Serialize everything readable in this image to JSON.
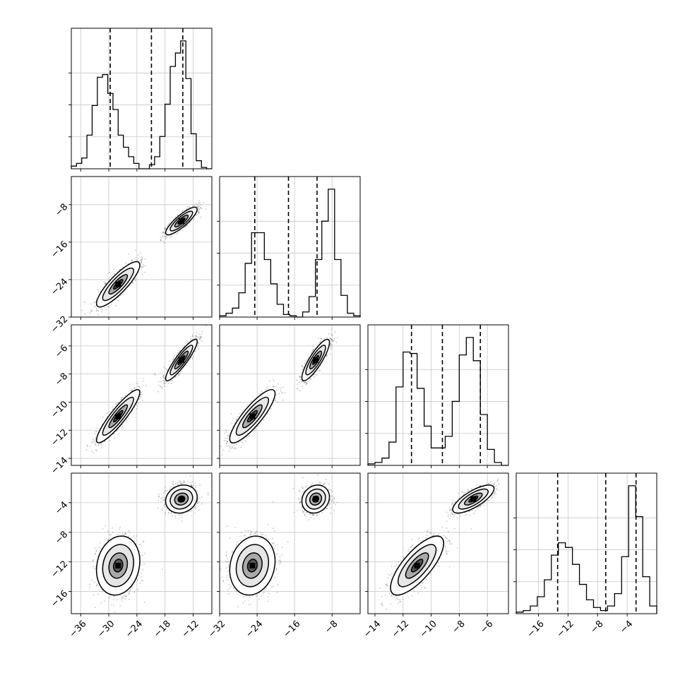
{
  "chart_data": {
    "type": "corner",
    "title": "",
    "variables": [
      {
        "name": "",
        "range": [
          -38,
          -8
        ],
        "ticks": [
          -36,
          -30,
          -24,
          -18,
          -12
        ],
        "tick_labels": [
          "−36",
          "−30",
          "−24",
          "−18",
          "−12"
        ],
        "quantiles": [
          -29.7,
          -20.9,
          -14.2
        ],
        "hist": [
          0.02,
          0.04,
          0.08,
          0.25,
          0.47,
          0.68,
          0.7,
          0.56,
          0.44,
          0.25,
          0.16,
          0.09,
          0.04,
          0.0,
          0.0,
          0.03,
          0.09,
          0.24,
          0.48,
          0.76,
          0.86,
          0.95,
          0.67,
          0.26,
          0.06,
          0.01,
          0.0
        ]
      },
      {
        "name": "",
        "range": [
          -32,
          -2
        ],
        "ticks": [
          -32,
          -24,
          -16,
          -8
        ],
        "tick_labels": [
          "−32",
          "−24",
          "−16",
          "−8"
        ],
        "quantiles": [
          -24.5,
          -17.3,
          -11.2
        ],
        "hist": [
          0.01,
          0.03,
          0.07,
          0.19,
          0.42,
          0.66,
          0.66,
          0.45,
          0.26,
          0.1,
          0.02,
          0.01,
          0.0,
          0.04,
          0.16,
          0.45,
          0.75,
          1.0,
          0.45,
          0.17,
          0.03,
          0.01
        ]
      },
      {
        "name": "",
        "range": [
          -14.5,
          -4.5
        ],
        "ticks": [
          -14,
          -12,
          -10,
          -8,
          -6
        ],
        "tick_labels": [
          "−14",
          "−12",
          "−10",
          "−8",
          "−6"
        ],
        "quantiles": [
          -11.4,
          -9.2,
          -6.5
        ],
        "hist": [
          0.01,
          0.02,
          0.05,
          0.16,
          0.54,
          0.78,
          0.77,
          0.53,
          0.27,
          0.12,
          0.12,
          0.2,
          0.44,
          0.76,
          0.88,
          0.72,
          0.35,
          0.11,
          0.02,
          0.0
        ]
      },
      {
        "name": "",
        "range": [
          -19,
          0
        ],
        "ticks": [
          -16,
          -12,
          -8,
          -4
        ],
        "tick_labels": [
          "−16",
          "−12",
          "−8",
          "−4"
        ],
        "quantiles": [
          -13.4,
          -6.9,
          -2.8
        ],
        "hist": [
          0.01,
          0.02,
          0.05,
          0.11,
          0.22,
          0.38,
          0.46,
          0.43,
          0.32,
          0.19,
          0.09,
          0.04,
          0.02,
          0.05,
          0.13,
          0.37,
          0.83,
          0.63,
          0.24,
          0.05
        ]
      }
    ],
    "modes": [
      {
        "weight": 0.5,
        "mean": [
          -28.0,
          -25.0,
          -11.0,
          -12.5
        ],
        "sd": [
          2.2,
          2.3,
          0.9,
          1.9
        ]
      },
      {
        "weight": 0.5,
        "mean": [
          -14.5,
          -11.5,
          -7.0,
          -3.5
        ],
        "sd": [
          1.6,
          1.4,
          0.7,
          0.9
        ]
      }
    ],
    "correlations": {
      "1-0": 0.85,
      "2-0": 0.9,
      "2-1": 0.85,
      "3-0": 0.15,
      "3-1": 0.15,
      "3-2": 0.75
    },
    "grid": true,
    "samples_per_mode": 1100
  }
}
